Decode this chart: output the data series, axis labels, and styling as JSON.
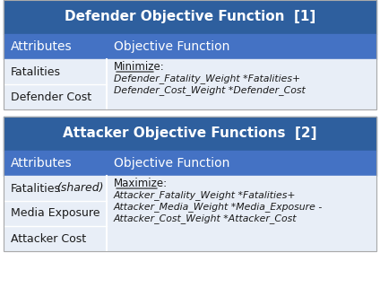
{
  "defender_title": "Defender Objective Function  [1]",
  "attacker_title": "Attacker Objective Functions  [2]",
  "header_bg": "#2E5F9E",
  "subheader_bg": "#4472C4",
  "row_bg": "#E8EEF7",
  "border_color": "#FFFFFF",
  "title_text_color": "#FFFFFF",
  "header_text_color": "#FFFFFF",
  "row_text_color": "#1A1A1A",
  "col1_header": "Attributes",
  "col2_header": "Objective Function",
  "defender_rows": [
    [
      "Fatalities",
      ""
    ],
    [
      "Defender Cost",
      ""
    ]
  ],
  "defender_obj_label": "Minimize:",
  "defender_obj_line1": "Defender_Fatality_Weight *Fatalities+",
  "defender_obj_line2": "Defender_Cost_Weight *Defender_Cost",
  "attacker_rows": [
    [
      "Fatalities",
      "(shared)"
    ],
    [
      "Media Exposure",
      ""
    ],
    [
      "Attacker Cost",
      ""
    ]
  ],
  "attacker_obj_label": "Maximize:",
  "attacker_obj_line1": "Attacker_Fatality_Weight *Fatalities+",
  "attacker_obj_line2": "Attacker_Media_Weight *Media_Exposure -",
  "attacker_obj_line3": "Attacker_Cost_Weight *Attacker_Cost"
}
